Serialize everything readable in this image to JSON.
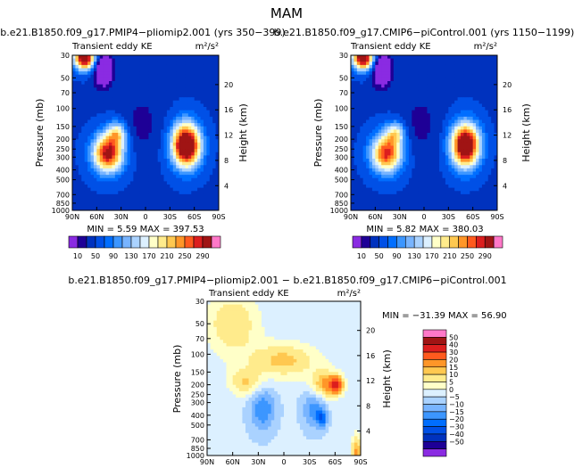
{
  "page": {
    "title": "MAM",
    "diff_title": "b.e21.B1850.f09_g17.PMIP4−pliomip2.001 − b.e21.B1850.f09_g17.CMIP6−piControl.001"
  },
  "chart_data": [
    {
      "type": "contour",
      "id": "left",
      "title": "b.e21.B1850.f09_g17.PMIP4−pliomip2.001 (yrs 350−399)",
      "variable": "Transient eddy KE",
      "units": "m²/s²",
      "ylabel": "Pressure (mb)",
      "y2label": "Height (km)",
      "x_ticks": [
        "90N",
        "60N",
        "30N",
        "0",
        "30S",
        "60S",
        "90S"
      ],
      "p_ticks": [
        "30",
        "50",
        "70",
        "100",
        "150",
        "200",
        "250",
        "300",
        "400",
        "500",
        "700",
        "850",
        "1000"
      ],
      "p_values": [
        30,
        50,
        70,
        100,
        150,
        200,
        250,
        300,
        400,
        500,
        700,
        850,
        1000
      ],
      "height_ticks": [
        "20",
        "16",
        "12",
        "8",
        "4"
      ],
      "height_values": [
        20,
        16,
        12,
        8,
        4
      ],
      "stats": "MIN =    5.59   MAX = 397.53",
      "min": 5.59,
      "max": 397.53,
      "colorbar_labels": [
        "10",
        "50",
        "90",
        "130",
        "170",
        "210",
        "250",
        "290"
      ],
      "levels": [
        10,
        30,
        50,
        70,
        90,
        110,
        130,
        150,
        170,
        190,
        210,
        230,
        250,
        270,
        290
      ],
      "colors": [
        "#8a2be2",
        "#1e0096",
        "#0032be",
        "#0050e6",
        "#006eff",
        "#3c96ff",
        "#78b4ff",
        "#aad2ff",
        "#dcf0ff",
        "#ffffc8",
        "#ffeb8c",
        "#ffc850",
        "#ff9628",
        "#ff5a1e",
        "#dc1e1e",
        "#a01414",
        "#ff78c8"
      ],
      "features": [
        {
          "name": "strat-jet-nh",
          "lat": 75,
          "p": 32,
          "sx": 9,
          "sy": 0.18,
          "amp": 300
        },
        {
          "name": "strat-dip-nh",
          "lat": 52,
          "p": 42,
          "sx": 8,
          "sy": 0.25,
          "amp": -110
        },
        {
          "name": "storm-track-nh",
          "lat": 46,
          "p": 275,
          "sx": 13,
          "sy": 0.3,
          "amp": 258
        },
        {
          "name": "storm-track-nh-top",
          "lat": 35,
          "p": 175,
          "sx": 8,
          "sy": 0.18,
          "amp": 120
        },
        {
          "name": "storm-track-sh",
          "lat": -50,
          "p": 230,
          "sx": 12,
          "sy": 0.34,
          "amp": 336
        },
        {
          "name": "trop-dip",
          "lat": 5,
          "p": 140,
          "sx": 16,
          "sy": 0.5,
          "amp": -25
        }
      ],
      "base_level": 48
    },
    {
      "type": "contour",
      "id": "right",
      "title": "b.e21.B1850.f09_g17.CMIP6−piControl.001 (yrs 1150−1199)",
      "variable": "Transient eddy KE",
      "units": "m²/s²",
      "ylabel": "Pressure (mb)",
      "y2label": "Height (km)",
      "x_ticks": [
        "90N",
        "60N",
        "30N",
        "0",
        "30S",
        "60S",
        "90S"
      ],
      "p_ticks": [
        "30",
        "50",
        "70",
        "100",
        "150",
        "200",
        "250",
        "300",
        "400",
        "500",
        "700",
        "850",
        "1000"
      ],
      "p_values": [
        30,
        50,
        70,
        100,
        150,
        200,
        250,
        300,
        400,
        500,
        700,
        850,
        1000
      ],
      "height_ticks": [
        "20",
        "16",
        "12",
        "8",
        "4"
      ],
      "height_values": [
        20,
        16,
        12,
        8,
        4
      ],
      "stats": "MIN =    5.82   MAX = 380.03",
      "min": 5.82,
      "max": 380.03,
      "colorbar_labels": [
        "10",
        "50",
        "90",
        "130",
        "170",
        "210",
        "250",
        "290"
      ],
      "levels": [
        10,
        30,
        50,
        70,
        90,
        110,
        130,
        150,
        170,
        190,
        210,
        230,
        250,
        270,
        290
      ],
      "colors": [
        "#8a2be2",
        "#1e0096",
        "#0032be",
        "#0050e6",
        "#006eff",
        "#3c96ff",
        "#78b4ff",
        "#aad2ff",
        "#dcf0ff",
        "#ffffc8",
        "#ffeb8c",
        "#ffc850",
        "#ff9628",
        "#ff5a1e",
        "#dc1e1e",
        "#a01414",
        "#ff78c8"
      ],
      "features": [
        {
          "name": "strat-jet-nh",
          "lat": 75,
          "p": 32,
          "sx": 9,
          "sy": 0.18,
          "amp": 300
        },
        {
          "name": "strat-dip-nh",
          "lat": 52,
          "p": 42,
          "sx": 8,
          "sy": 0.25,
          "amp": -110
        },
        {
          "name": "storm-track-nh",
          "lat": 46,
          "p": 275,
          "sx": 13,
          "sy": 0.3,
          "amp": 235
        },
        {
          "name": "storm-track-nh-top",
          "lat": 35,
          "p": 175,
          "sx": 8,
          "sy": 0.18,
          "amp": 110
        },
        {
          "name": "storm-track-sh",
          "lat": -51,
          "p": 230,
          "sx": 12,
          "sy": 0.34,
          "amp": 320
        },
        {
          "name": "trop-dip",
          "lat": 5,
          "p": 140,
          "sx": 16,
          "sy": 0.5,
          "amp": -25
        }
      ],
      "base_level": 48
    },
    {
      "type": "contour",
      "id": "diff",
      "title": "",
      "variable": "Transient eddy KE",
      "units": "m²/s²",
      "ylabel": "Pressure (mb)",
      "y2label": "Height (km)",
      "x_ticks": [
        "90N",
        "60N",
        "30N",
        "0",
        "30S",
        "60S",
        "90S"
      ],
      "p_ticks": [
        "30",
        "50",
        "70",
        "100",
        "150",
        "200",
        "250",
        "300",
        "400",
        "500",
        "700",
        "850",
        "1000"
      ],
      "p_values": [
        30,
        50,
        70,
        100,
        150,
        200,
        250,
        300,
        400,
        500,
        700,
        850,
        1000
      ],
      "height_ticks": [
        "20",
        "16",
        "12",
        "8",
        "4"
      ],
      "height_values": [
        20,
        16,
        12,
        8,
        4
      ],
      "stats": "MIN = −31.39   MAX =   56.90",
      "min": -31.39,
      "max": 56.9,
      "colorbar_labels": [
        "50",
        "40",
        "30",
        "20",
        "15",
        "10",
        "5",
        "0",
        "−5",
        "−10",
        "−15",
        "−20",
        "−30",
        "−40",
        "−50"
      ],
      "levels": [
        -50,
        -40,
        -30,
        -20,
        -15,
        -10,
        -5,
        0,
        5,
        10,
        15,
        20,
        30,
        40,
        50
      ],
      "colors": [
        "#8a2be2",
        "#1e0096",
        "#0032be",
        "#0050e6",
        "#006eff",
        "#3c96ff",
        "#78b4ff",
        "#aad2ff",
        "#dcf0ff",
        "#ffffc8",
        "#ffeb8c",
        "#ffc850",
        "#ff9628",
        "#ff5a1e",
        "#dc1e1e",
        "#a01414",
        "#ff78c8"
      ],
      "features": [
        {
          "name": "strat-warm-nh",
          "lat": 60,
          "p": 50,
          "sx": 22,
          "sy": 0.5,
          "amp": 14
        },
        {
          "name": "jet-band-upper",
          "lat": 0,
          "p": 115,
          "sx": 28,
          "sy": 0.28,
          "amp": 16
        },
        {
          "name": "band-nh",
          "lat": 45,
          "p": 190,
          "sx": 14,
          "sy": 0.22,
          "amp": 14
        },
        {
          "name": "band-sh",
          "lat": -50,
          "p": 200,
          "sx": 12,
          "sy": 0.22,
          "amp": 22
        },
        {
          "name": "peak-sh",
          "lat": -62,
          "p": 200,
          "sx": 5,
          "sy": 0.12,
          "amp": 34
        },
        {
          "name": "trop-low-nh",
          "lat": 25,
          "p": 350,
          "sx": 10,
          "sy": 0.35,
          "amp": -16
        },
        {
          "name": "trop-low-sh",
          "lat": -35,
          "p": 350,
          "sx": 9,
          "sy": 0.3,
          "amp": -14
        },
        {
          "name": "trop-low-core",
          "lat": -45,
          "p": 430,
          "sx": 4,
          "sy": 0.15,
          "amp": -18
        },
        {
          "name": "surface-sh",
          "lat": -85,
          "p": 900,
          "sx": 4,
          "sy": 0.25,
          "amp": 20
        }
      ],
      "base_level": 1
    }
  ]
}
